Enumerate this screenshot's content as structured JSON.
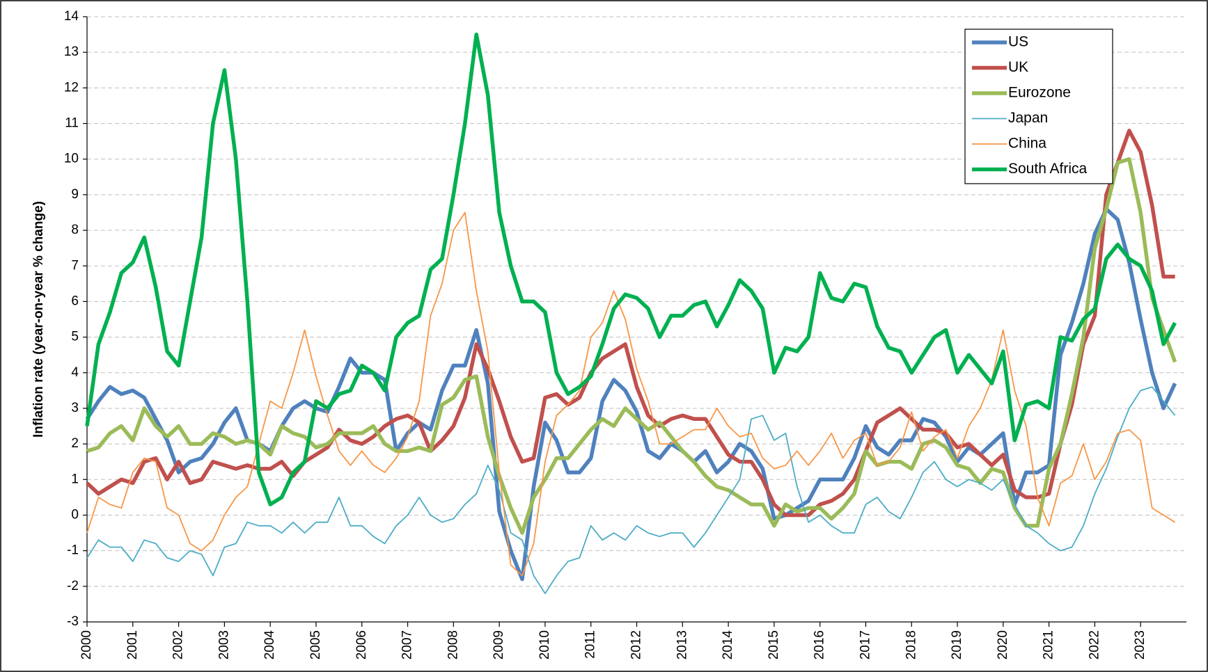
{
  "chart_data": {
    "type": "line",
    "y_label": "Inflation rate (year-on-year % change)",
    "xlim": [
      2000,
      2024
    ],
    "xticks": [
      2000,
      2001,
      2002,
      2003,
      2004,
      2005,
      2006,
      2007,
      2008,
      2009,
      2010,
      2011,
      2012,
      2013,
      2014,
      2015,
      2016,
      2017,
      2018,
      2019,
      2020,
      2021,
      2022,
      2023
    ],
    "ylim": [
      -3,
      14
    ],
    "yticks": [
      -3,
      -2,
      -1,
      0,
      1,
      2,
      3,
      4,
      5,
      6,
      7,
      8,
      9,
      10,
      11,
      12,
      13,
      14
    ],
    "grid": true,
    "legend": "top-right",
    "x": [
      2000,
      2000.25,
      2000.5,
      2000.75,
      2001,
      2001.25,
      2001.5,
      2001.75,
      2002,
      2002.25,
      2002.5,
      2002.75,
      2003,
      2003.25,
      2003.5,
      2003.75,
      2004,
      2004.25,
      2004.5,
      2004.75,
      2005,
      2005.25,
      2005.5,
      2005.75,
      2006,
      2006.25,
      2006.5,
      2006.75,
      2007,
      2007.25,
      2007.5,
      2007.75,
      2008,
      2008.25,
      2008.5,
      2008.75,
      2009,
      2009.25,
      2009.5,
      2009.75,
      2010,
      2010.25,
      2010.5,
      2010.75,
      2011,
      2011.25,
      2011.5,
      2011.75,
      2012,
      2012.25,
      2012.5,
      2012.75,
      2013,
      2013.25,
      2013.5,
      2013.75,
      2014,
      2014.25,
      2014.5,
      2014.75,
      2015,
      2015.25,
      2015.5,
      2015.75,
      2016,
      2016.25,
      2016.5,
      2016.75,
      2017,
      2017.25,
      2017.5,
      2017.75,
      2018,
      2018.25,
      2018.5,
      2018.75,
      2019,
      2019.25,
      2019.5,
      2019.75,
      2020,
      2020.25,
      2020.5,
      2020.75,
      2021,
      2021.25,
      2021.5,
      2021.75,
      2022,
      2022.25,
      2022.5,
      2022.75,
      2023,
      2023.25,
      2023.5,
      2023.75
    ],
    "series": [
      {
        "name": "US",
        "color": "#4f81bd",
        "values": [
          2.7,
          3.2,
          3.6,
          3.4,
          3.5,
          3.3,
          2.7,
          2.1,
          1.2,
          1.5,
          1.6,
          2.0,
          2.6,
          3.0,
          2.1,
          2.0,
          1.8,
          2.5,
          3.0,
          3.2,
          3.0,
          2.9,
          3.6,
          4.4,
          4.0,
          4.0,
          3.8,
          1.8,
          2.3,
          2.6,
          2.4,
          3.5,
          4.2,
          4.2,
          5.2,
          3.7,
          0.1,
          -1.0,
          -1.8,
          0.8,
          2.6,
          2.1,
          1.2,
          1.2,
          1.6,
          3.2,
          3.8,
          3.5,
          2.9,
          1.8,
          1.6,
          2.0,
          1.8,
          1.5,
          1.8,
          1.2,
          1.5,
          2.0,
          1.8,
          1.3,
          -0.1,
          0.0,
          0.2,
          0.4,
          1.0,
          1.0,
          1.0,
          1.6,
          2.5,
          1.9,
          1.7,
          2.1,
          2.1,
          2.7,
          2.6,
          2.2,
          1.5,
          1.9,
          1.7,
          2.0,
          2.3,
          0.3,
          1.2,
          1.2,
          1.4,
          4.5,
          5.4,
          6.5,
          7.9,
          8.6,
          8.3,
          7.1,
          5.5,
          4.0,
          3.0,
          3.7
        ]
      },
      {
        "name": "UK",
        "color": "#c0504d",
        "values": [
          0.9,
          0.6,
          0.8,
          1.0,
          0.9,
          1.5,
          1.6,
          1.0,
          1.5,
          0.9,
          1.0,
          1.5,
          1.4,
          1.3,
          1.4,
          1.3,
          1.3,
          1.5,
          1.1,
          1.5,
          1.7,
          1.9,
          2.4,
          2.1,
          2.0,
          2.2,
          2.5,
          2.7,
          2.8,
          2.6,
          1.8,
          2.1,
          2.5,
          3.3,
          4.8,
          4.1,
          3.2,
          2.2,
          1.5,
          1.6,
          3.3,
          3.4,
          3.1,
          3.3,
          4.0,
          4.4,
          4.6,
          4.8,
          3.6,
          2.8,
          2.5,
          2.7,
          2.8,
          2.7,
          2.7,
          2.2,
          1.7,
          1.5,
          1.5,
          1.0,
          0.3,
          0.0,
          0.0,
          0.0,
          0.3,
          0.4,
          0.6,
          1.0,
          1.8,
          2.6,
          2.8,
          3.0,
          2.7,
          2.4,
          2.4,
          2.3,
          1.9,
          2.0,
          1.7,
          1.4,
          1.7,
          0.7,
          0.5,
          0.5,
          0.6,
          2.0,
          3.1,
          4.8,
          5.6,
          9.0,
          9.9,
          10.8,
          10.2,
          8.7,
          6.7,
          6.7
        ]
      },
      {
        "name": "Eurozone",
        "color": "#9bbb59",
        "values": [
          1.8,
          1.9,
          2.3,
          2.5,
          2.1,
          3.0,
          2.5,
          2.2,
          2.5,
          2.0,
          2.0,
          2.3,
          2.2,
          2.0,
          2.1,
          2.0,
          1.7,
          2.5,
          2.3,
          2.2,
          1.9,
          2.0,
          2.3,
          2.3,
          2.3,
          2.5,
          2.0,
          1.8,
          1.8,
          1.9,
          1.8,
          3.1,
          3.3,
          3.8,
          3.9,
          2.2,
          1.1,
          0.2,
          -0.5,
          0.5,
          1.0,
          1.6,
          1.6,
          2.0,
          2.4,
          2.7,
          2.5,
          3.0,
          2.7,
          2.4,
          2.6,
          2.2,
          1.8,
          1.5,
          1.1,
          0.8,
          0.7,
          0.5,
          0.3,
          0.3,
          -0.3,
          0.3,
          0.1,
          0.2,
          0.2,
          -0.1,
          0.2,
          0.6,
          1.8,
          1.4,
          1.5,
          1.5,
          1.3,
          2.0,
          2.1,
          1.9,
          1.4,
          1.3,
          0.9,
          1.3,
          1.2,
          0.2,
          -0.3,
          -0.3,
          1.3,
          2.0,
          3.4,
          5.0,
          7.5,
          8.6,
          9.9,
          10.0,
          8.5,
          6.1,
          5.2,
          4.3
        ]
      },
      {
        "name": "Japan",
        "color": "#4bacc6",
        "values": [
          -1.2,
          -0.7,
          -0.9,
          -0.9,
          -1.3,
          -0.7,
          -0.8,
          -1.2,
          -1.3,
          -1.0,
          -1.1,
          -1.7,
          -0.9,
          -0.8,
          -0.2,
          -0.3,
          -0.3,
          -0.5,
          -0.2,
          -0.5,
          -0.2,
          -0.2,
          0.5,
          -0.3,
          -0.3,
          -0.6,
          -0.8,
          -0.3,
          0.0,
          0.5,
          0.0,
          -0.2,
          -0.1,
          0.3,
          0.6,
          1.4,
          0.7,
          -0.5,
          -0.7,
          -1.7,
          -2.2,
          -1.7,
          -1.3,
          -1.2,
          -0.3,
          -0.7,
          -0.5,
          -0.7,
          -0.3,
          -0.5,
          -0.6,
          -0.5,
          -0.5,
          -0.9,
          -0.5,
          0.0,
          0.5,
          1.0,
          2.7,
          2.8,
          2.1,
          2.3,
          0.8,
          -0.2,
          0.0,
          -0.3,
          -0.5,
          -0.5,
          0.3,
          0.5,
          0.1,
          -0.1,
          0.5,
          1.2,
          1.5,
          1.0,
          0.8,
          1.0,
          0.9,
          0.7,
          1.0,
          0.3,
          -0.3,
          -0.5,
          -0.8,
          -1.0,
          -0.9,
          -0.3,
          0.6,
          1.3,
          2.2,
          3.0,
          3.5,
          3.6,
          3.2,
          2.8
        ]
      },
      {
        "name": "China",
        "color": "#f79646",
        "values": [
          -0.5,
          0.5,
          0.3,
          0.2,
          1.2,
          1.6,
          1.5,
          0.2,
          0.0,
          -0.8,
          -1.0,
          -0.7,
          0.0,
          0.5,
          0.8,
          2.0,
          3.2,
          3.0,
          4.0,
          5.2,
          3.9,
          2.8,
          1.8,
          1.4,
          1.8,
          1.4,
          1.2,
          1.6,
          2.2,
          3.2,
          5.6,
          6.5,
          8.0,
          8.5,
          6.3,
          4.6,
          1.2,
          -1.4,
          -1.7,
          -0.8,
          1.5,
          2.8,
          3.1,
          3.5,
          5.0,
          5.4,
          6.3,
          5.5,
          4.1,
          3.2,
          2.0,
          2.0,
          2.2,
          2.4,
          2.4,
          3.0,
          2.5,
          2.2,
          2.3,
          1.6,
          1.3,
          1.4,
          1.8,
          1.4,
          1.8,
          2.3,
          1.6,
          2.1,
          2.3,
          1.4,
          1.5,
          1.9,
          2.9,
          1.8,
          2.2,
          2.4,
          1.6,
          2.5,
          3.0,
          3.8,
          5.2,
          3.5,
          2.5,
          0.5,
          -0.3,
          0.9,
          1.1,
          2.0,
          1.0,
          1.5,
          2.3,
          2.4,
          2.1,
          0.2,
          0.0,
          -0.2
        ]
      },
      {
        "name": "South Africa",
        "color": "#00b050",
        "values": [
          2.5,
          4.8,
          5.7,
          6.8,
          7.1,
          7.8,
          6.4,
          4.6,
          4.2,
          6.0,
          7.8,
          11.0,
          12.5,
          10.0,
          6.0,
          1.2,
          0.3,
          0.5,
          1.2,
          1.5,
          3.2,
          3.0,
          3.4,
          3.5,
          4.2,
          4.0,
          3.5,
          5.0,
          5.4,
          5.6,
          6.9,
          7.2,
          9.0,
          11.0,
          13.5,
          11.8,
          8.5,
          7.0,
          6.0,
          6.0,
          5.7,
          4.0,
          3.4,
          3.6,
          3.9,
          4.8,
          5.8,
          6.2,
          6.1,
          5.8,
          5.0,
          5.6,
          5.6,
          5.9,
          6.0,
          5.3,
          5.9,
          6.6,
          6.3,
          5.8,
          4.0,
          4.7,
          4.6,
          5.0,
          6.8,
          6.1,
          6.0,
          6.5,
          6.4,
          5.3,
          4.7,
          4.6,
          4.0,
          4.5,
          5.0,
          5.2,
          4.0,
          4.5,
          4.1,
          3.7,
          4.6,
          2.1,
          3.1,
          3.2,
          3.0,
          5.0,
          4.9,
          5.5,
          5.8,
          7.2,
          7.6,
          7.2,
          7.0,
          6.3,
          4.8,
          5.4
        ]
      }
    ]
  }
}
